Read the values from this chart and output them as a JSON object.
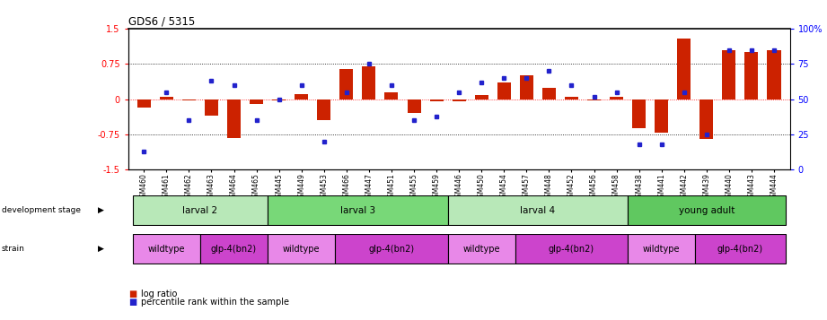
{
  "title": "GDS6 / 5315",
  "samples": [
    "GSM460",
    "GSM461",
    "GSM462",
    "GSM463",
    "GSM464",
    "GSM465",
    "GSM445",
    "GSM449",
    "GSM453",
    "GSM466",
    "GSM447",
    "GSM451",
    "GSM455",
    "GSM459",
    "GSM446",
    "GSM450",
    "GSM454",
    "GSM457",
    "GSM448",
    "GSM452",
    "GSM456",
    "GSM458",
    "GSM438",
    "GSM441",
    "GSM442",
    "GSM439",
    "GSM440",
    "GSM443",
    "GSM444"
  ],
  "log_ratio": [
    -0.18,
    0.05,
    -0.03,
    -0.35,
    -0.82,
    -0.1,
    -0.02,
    0.1,
    -0.45,
    0.65,
    0.7,
    0.15,
    -0.3,
    -0.05,
    -0.05,
    0.08,
    0.35,
    0.5,
    0.25,
    0.05,
    -0.02,
    0.05,
    -0.62,
    -0.72,
    1.3,
    -0.85,
    1.05,
    1.0,
    1.05
  ],
  "percentile": [
    13,
    55,
    35,
    63,
    60,
    35,
    50,
    60,
    20,
    55,
    75,
    60,
    35,
    38,
    55,
    62,
    65,
    65,
    70,
    60,
    52,
    55,
    18,
    18,
    55,
    25,
    85,
    85,
    85
  ],
  "dev_stages": [
    {
      "label": "larval 2",
      "start": 0,
      "end": 6,
      "color": "#b8e8b8"
    },
    {
      "label": "larval 3",
      "start": 6,
      "end": 14,
      "color": "#78d878"
    },
    {
      "label": "larval 4",
      "start": 14,
      "end": 22,
      "color": "#b8e8b8"
    },
    {
      "label": "young adult",
      "start": 22,
      "end": 29,
      "color": "#60c860"
    }
  ],
  "strains": [
    {
      "label": "wildtype",
      "start": 0,
      "end": 3,
      "color": "#e888e8"
    },
    {
      "label": "glp-4(bn2)",
      "start": 3,
      "end": 6,
      "color": "#cc44cc"
    },
    {
      "label": "wildtype",
      "start": 6,
      "end": 9,
      "color": "#e888e8"
    },
    {
      "label": "glp-4(bn2)",
      "start": 9,
      "end": 14,
      "color": "#cc44cc"
    },
    {
      "label": "wildtype",
      "start": 14,
      "end": 17,
      "color": "#e888e8"
    },
    {
      "label": "glp-4(bn2)",
      "start": 17,
      "end": 22,
      "color": "#cc44cc"
    },
    {
      "label": "wildtype",
      "start": 22,
      "end": 25,
      "color": "#e888e8"
    },
    {
      "label": "glp-4(bn2)",
      "start": 25,
      "end": 29,
      "color": "#cc44cc"
    }
  ],
  "bar_color": "#cc2200",
  "dot_color": "#2222cc",
  "ylim": [
    -1.5,
    1.5
  ],
  "y2lim": [
    0,
    100
  ],
  "yticks": [
    -1.5,
    -0.75,
    0,
    0.75,
    1.5
  ],
  "y2ticks": [
    0,
    25,
    50,
    75,
    100
  ]
}
